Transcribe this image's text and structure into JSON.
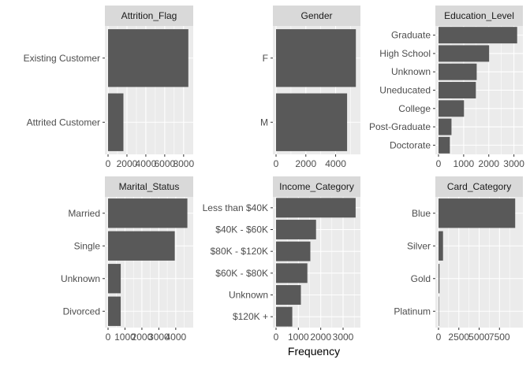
{
  "chart_data": {
    "type": "bar",
    "orientation": "horizontal",
    "xlabel": "Frequency",
    "ylabel": "",
    "grid": true,
    "facets": [
      {
        "name": "Attrition_Flag",
        "categories": [
          "Existing Customer",
          "Attrited Customer"
        ],
        "values": [
          8500,
          1627
        ],
        "xlim": [
          0,
          8600
        ],
        "xticks": [
          0,
          2000,
          4000,
          6000,
          8000
        ],
        "xtick_labels": [
          "0",
          "2000",
          "4000",
          "6000",
          "8000"
        ]
      },
      {
        "name": "Gender",
        "categories": [
          "F",
          "M"
        ],
        "values": [
          5358,
          4769
        ],
        "xlim": [
          0,
          5400
        ],
        "xticks": [
          0,
          2000,
          4000
        ],
        "xtick_labels": [
          "0",
          "2000",
          "4000"
        ]
      },
      {
        "name": "Education_Level",
        "categories": [
          "Graduate",
          "High School",
          "Unknown",
          "Uneducated",
          "College",
          "Post-Graduate",
          "Doctorate"
        ],
        "values": [
          3128,
          2013,
          1519,
          1487,
          1013,
          516,
          451
        ],
        "xlim": [
          0,
          3200
        ],
        "xticks": [
          0,
          1000,
          2000,
          3000
        ],
        "xtick_labels": [
          "0",
          "1000",
          "2000",
          "3000"
        ]
      },
      {
        "name": "Marital_Status",
        "categories": [
          "Married",
          "Single",
          "Unknown",
          "Divorced"
        ],
        "values": [
          4687,
          3943,
          749,
          748
        ],
        "xlim": [
          0,
          4800
        ],
        "xticks": [
          0,
          1000,
          2000,
          3000,
          4000
        ],
        "xtick_labels": [
          "0",
          "1000",
          "2000",
          "3000",
          "4000"
        ]
      },
      {
        "name": "Income_Category",
        "categories": [
          "Less than $40K",
          "$40K - $60K",
          "$80K - $120K",
          "$60K - $80K",
          "Unknown",
          "$120K +"
        ],
        "values": [
          3561,
          1790,
          1535,
          1402,
          1112,
          727
        ],
        "xlim": [
          0,
          3600
        ],
        "xticks": [
          0,
          1000,
          2000,
          3000
        ],
        "xtick_labels": [
          "0",
          "1000",
          "2000",
          "3000"
        ]
      },
      {
        "name": "Card_Category",
        "categories": [
          "Blue",
          "Silver",
          "Gold",
          "Platinum"
        ],
        "values": [
          9436,
          555,
          116,
          20
        ],
        "xlim": [
          0,
          9900
        ],
        "xticks": [
          0,
          2500,
          5000,
          7500
        ],
        "xtick_labels": [
          "0",
          "2500",
          "5000",
          "7500"
        ]
      }
    ]
  }
}
